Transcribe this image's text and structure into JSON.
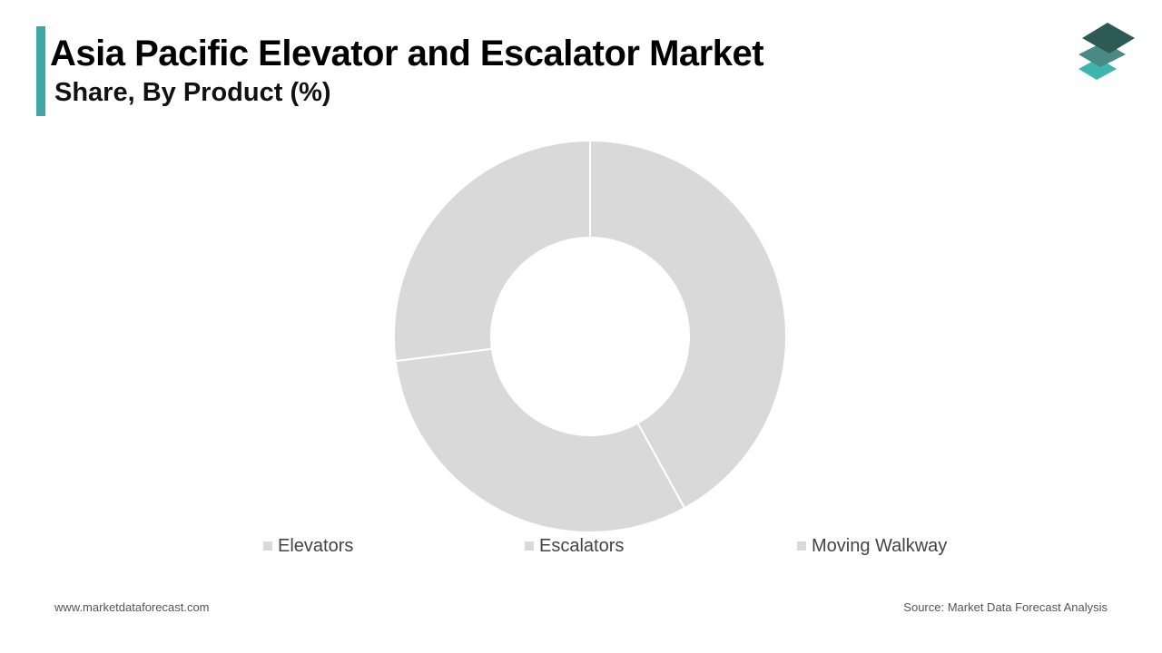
{
  "header": {
    "title": "Asia Pacific Elevator and Escalator Market",
    "subtitle": "Share, By Product (%)"
  },
  "colors": {
    "accent": "#3fa8a4",
    "slice": "#d9d9d9",
    "slice_border": "#ffffff",
    "logo_top": "#2e5a56",
    "logo_middle": "#4a8a85",
    "logo_bottom": "#3fb5b0"
  },
  "logo": {
    "icon": "stacked-layers-icon"
  },
  "chart_data": {
    "type": "pie",
    "donut": true,
    "categories": [
      "Elevators",
      "Escalators",
      "Moving Walkway"
    ],
    "values": [
      42,
      31,
      27
    ],
    "legend_position": "bottom"
  },
  "footer": {
    "website": "www.marketdataforecast.com",
    "source": "Source: Market Data Forecast Analysis"
  }
}
